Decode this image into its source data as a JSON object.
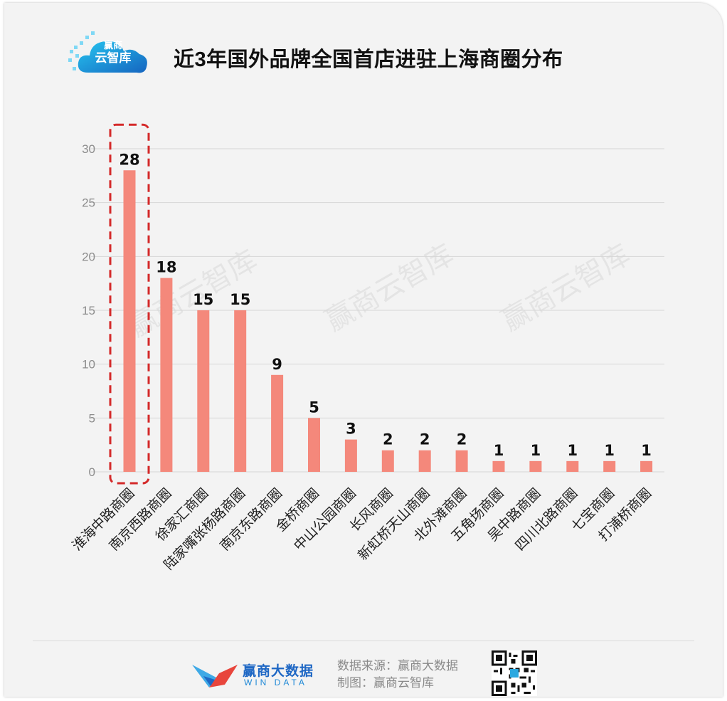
{
  "header": {
    "logo_line1": "赢商",
    "logo_line2": "云智库",
    "title": "近3年国外品牌全国首店进驻上海商圈分布"
  },
  "watermark_text": "赢商云智库",
  "colors": {
    "bar": "#f4887b",
    "highlight_border": "#d42a2a",
    "grid": "#d6d6d6",
    "axis_text": "#8c8c8c",
    "value_label": "#111111",
    "brand_blue": "#1e67c4",
    "brand_red": "#e8453c"
  },
  "chart_data": {
    "type": "bar",
    "categories": [
      "淮海中路商圈",
      "南京西路商圈",
      "徐家汇商圈",
      "陆家嘴张杨路商圈",
      "南京东路商圈",
      "金桥商圈",
      "中山公园商圈",
      "长风商圈",
      "新虹桥天山商圈",
      "北外滩商圈",
      "五角场商圈",
      "吴中路商圈",
      "四川北路商圈",
      "七宝商圈",
      "打浦桥商圈"
    ],
    "values": [
      28,
      18,
      15,
      15,
      9,
      5,
      3,
      2,
      2,
      2,
      1,
      1,
      1,
      1,
      1
    ],
    "data_labels": [
      "28",
      "18",
      "15",
      "15",
      "9",
      "5",
      "3",
      "2",
      "2",
      "2",
      "1",
      "1",
      "1",
      "1",
      "1"
    ],
    "y_ticks": [
      "0",
      "5",
      "10",
      "15",
      "20",
      "25",
      "30"
    ],
    "ylim": [
      0,
      30
    ],
    "grid": true,
    "highlight_category": "淮海中路商圈"
  },
  "footer": {
    "brand_name": "赢商大数据",
    "brand_sub": "WIN DATA",
    "source_line1": "数据来源：赢商大数据",
    "source_line2": "制图：赢商云智库",
    "qr_icon": "qr-code-icon"
  }
}
